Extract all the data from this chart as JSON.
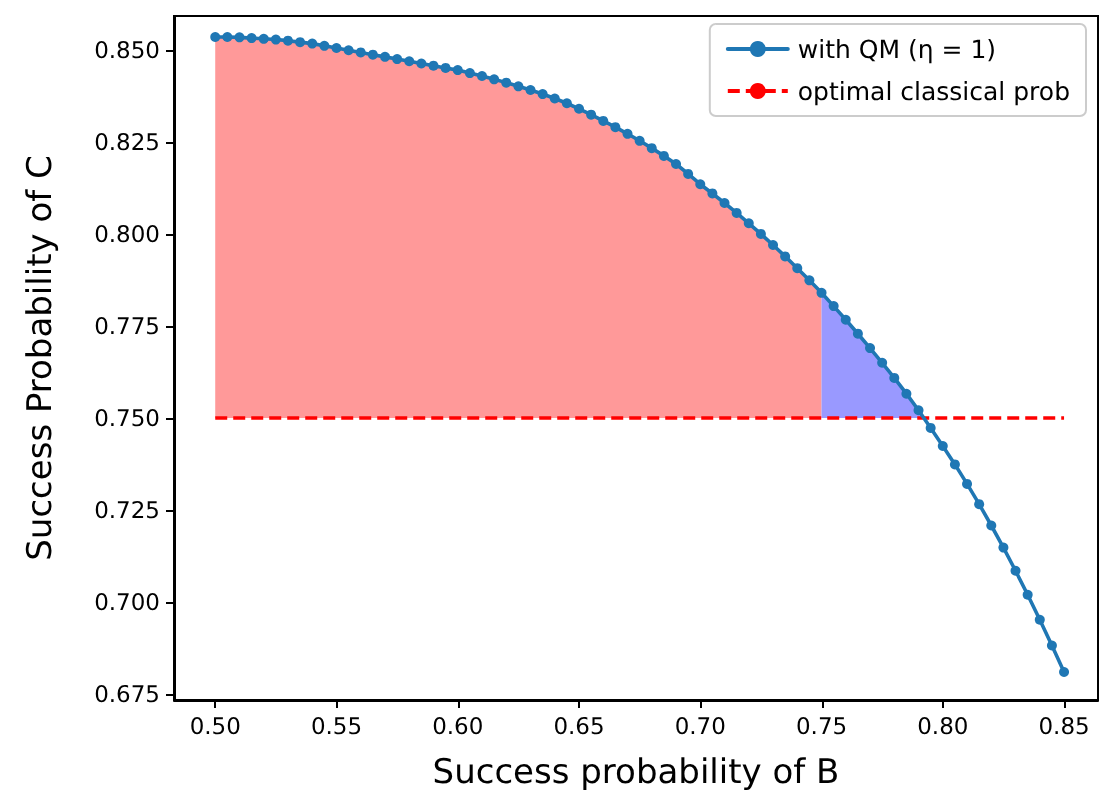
{
  "chart_data": {
    "type": "line",
    "xlabel": "Success probability of B",
    "ylabel": "Success Probability of C",
    "xlim": [
      0.483,
      0.864
    ],
    "ylim": [
      0.6734,
      0.8592
    ],
    "xticks": [
      {
        "value": 0.5,
        "label": "0.50"
      },
      {
        "value": 0.55,
        "label": "0.55"
      },
      {
        "value": 0.6,
        "label": "0.60"
      },
      {
        "value": 0.65,
        "label": "0.65"
      },
      {
        "value": 0.7,
        "label": "0.70"
      },
      {
        "value": 0.75,
        "label": "0.75"
      },
      {
        "value": 0.8,
        "label": "0.80"
      },
      {
        "value": 0.85,
        "label": "0.85"
      }
    ],
    "yticks": [
      {
        "value": 0.675,
        "label": "0.675"
      },
      {
        "value": 0.7,
        "label": "0.700"
      },
      {
        "value": 0.725,
        "label": "0.725"
      },
      {
        "value": 0.75,
        "label": "0.750"
      },
      {
        "value": 0.775,
        "label": "0.775"
      },
      {
        "value": 0.8,
        "label": "0.800"
      },
      {
        "value": 0.825,
        "label": "0.825"
      },
      {
        "value": 0.85,
        "label": "0.850"
      }
    ],
    "grid": false,
    "legend": "top right",
    "series": [
      {
        "type": "area",
        "color": "#ff9999",
        "x": [
          0.5,
          0.505,
          0.51,
          0.515,
          0.52,
          0.525,
          0.53,
          0.535,
          0.54,
          0.545,
          0.55,
          0.555,
          0.56,
          0.565,
          0.57,
          0.575,
          0.58,
          0.585,
          0.59,
          0.595,
          0.6,
          0.605,
          0.61,
          0.615,
          0.62,
          0.625,
          0.63,
          0.635,
          0.64,
          0.645,
          0.65,
          0.655,
          0.66,
          0.665,
          0.67,
          0.675,
          0.68,
          0.685,
          0.69,
          0.695,
          0.7,
          0.705,
          0.71,
          0.715,
          0.72,
          0.725,
          0.73,
          0.735,
          0.74,
          0.745,
          0.75
        ],
        "values": [
          0.8535,
          0.8535,
          0.8534,
          0.8532,
          0.853,
          0.8528,
          0.8525,
          0.8521,
          0.8517,
          0.8511,
          0.8505,
          0.8499,
          0.8493,
          0.8487,
          0.8481,
          0.8475,
          0.8469,
          0.8463,
          0.8457,
          0.8451,
          0.8445,
          0.8437,
          0.8429,
          0.842,
          0.8411,
          0.8401,
          0.8391,
          0.838,
          0.8368,
          0.8355,
          0.834,
          0.8324,
          0.8307,
          0.829,
          0.8272,
          0.8253,
          0.8233,
          0.8212,
          0.819,
          0.8163,
          0.8135,
          0.811,
          0.8084,
          0.8057,
          0.8029,
          0.8,
          0.797,
          0.7939,
          0.7907,
          0.7874,
          0.784
        ]
      },
      {
        "type": "area",
        "color": "#9999ff",
        "x": [
          0.75,
          0.755,
          0.76,
          0.765,
          0.77,
          0.775,
          0.78,
          0.785,
          0.79,
          0.7925
        ],
        "values": [
          0.784,
          0.7804,
          0.7767,
          0.7729,
          0.769,
          0.765,
          0.7609,
          0.7566,
          0.7521,
          0.75
        ]
      },
      {
        "name": "with QM (η = 1)",
        "color": "#1f77b4",
        "marker": "circle",
        "line_style": "solid",
        "x": [
          0.5,
          0.505,
          0.51,
          0.515,
          0.52,
          0.525,
          0.53,
          0.535,
          0.54,
          0.545,
          0.55,
          0.555,
          0.56,
          0.565,
          0.57,
          0.575,
          0.58,
          0.585,
          0.59,
          0.595,
          0.6,
          0.605,
          0.61,
          0.615,
          0.62,
          0.625,
          0.63,
          0.635,
          0.64,
          0.645,
          0.65,
          0.655,
          0.66,
          0.665,
          0.67,
          0.675,
          0.68,
          0.685,
          0.69,
          0.695,
          0.7,
          0.705,
          0.71,
          0.715,
          0.72,
          0.725,
          0.73,
          0.735,
          0.74,
          0.745,
          0.75,
          0.755,
          0.76,
          0.765,
          0.77,
          0.775,
          0.78,
          0.785,
          0.79,
          0.795,
          0.8,
          0.805,
          0.81,
          0.815,
          0.82,
          0.825,
          0.83,
          0.835,
          0.84,
          0.845,
          0.85
        ],
        "values": [
          0.8535,
          0.8535,
          0.8534,
          0.8532,
          0.853,
          0.8528,
          0.8525,
          0.8521,
          0.8517,
          0.8511,
          0.8505,
          0.8499,
          0.8493,
          0.8487,
          0.8481,
          0.8475,
          0.8469,
          0.8463,
          0.8457,
          0.8451,
          0.8445,
          0.8437,
          0.8429,
          0.842,
          0.8411,
          0.8401,
          0.8391,
          0.838,
          0.8368,
          0.8355,
          0.834,
          0.8324,
          0.8307,
          0.829,
          0.8272,
          0.8253,
          0.8233,
          0.8212,
          0.819,
          0.8163,
          0.8135,
          0.811,
          0.8084,
          0.8057,
          0.8029,
          0.8,
          0.797,
          0.7939,
          0.7907,
          0.7874,
          0.784,
          0.7804,
          0.7767,
          0.7729,
          0.769,
          0.765,
          0.7609,
          0.7566,
          0.7521,
          0.7473,
          0.7424,
          0.7374,
          0.7321,
          0.7266,
          0.7208,
          0.7148,
          0.7085,
          0.702,
          0.6952,
          0.6882,
          0.681
        ]
      }
    ],
    "ref_lines": [
      {
        "axis": "y",
        "value": 0.75,
        "label": "optimal classical prob",
        "color": "#ff0000",
        "line_style": "dashed"
      }
    ]
  }
}
